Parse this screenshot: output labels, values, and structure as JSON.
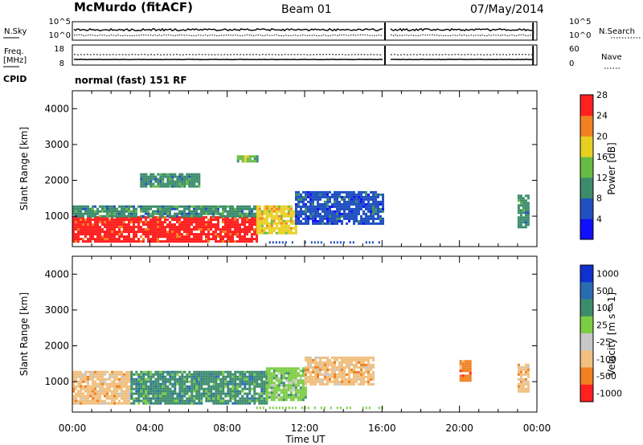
{
  "header": {
    "station": "McMurdo (fitACF)",
    "beam": "Beam 01",
    "date": "07/May/2014"
  },
  "top_panels": {
    "left_label_1": "N.Sky",
    "left_tick_hi_1": "10^5",
    "left_tick_lo_1": "10^0",
    "right_label_1": "N.Search",
    "right_tick_hi_1": "10^5",
    "right_tick_lo_1": "10^0",
    "left_label_2a": "Freq.",
    "left_label_2b": "[MHz]",
    "left_tick_hi_2": "18",
    "left_tick_lo_2": "8",
    "right_label_2": "Nave",
    "right_tick_hi_2": "60",
    "right_tick_lo_2": "0",
    "cpid_label": "CPID",
    "cpid_value": "normal (fast) 151 RF"
  },
  "x_axis": {
    "label": "Time UT",
    "ticks": [
      "00:00",
      "04:00",
      "08:00",
      "12:00",
      "16:00",
      "20:00",
      "00:00"
    ]
  },
  "chart_data": [
    {
      "type": "heatmap",
      "name": "power",
      "ylabel": "Slant Range [km]",
      "yticks": [
        "1000",
        "2000",
        "3000",
        "4000"
      ],
      "ylim": [
        150,
        4500
      ],
      "xlim_hours": [
        0,
        24
      ],
      "colorbar": {
        "label": "Power [dB]",
        "ticks": [
          "4",
          "8",
          "12",
          "16",
          "20",
          "24",
          "28"
        ],
        "colors": [
          "#1010ff",
          "#2050c0",
          "#3c8c6c",
          "#66bb44",
          "#e8d020",
          "#f08020",
          "#ff2020"
        ]
      },
      "echo_regions": [
        {
          "t_start": 0.0,
          "t_end": 9.5,
          "r_low": 300,
          "r_high": 1000,
          "level": "28"
        },
        {
          "t_start": 0.0,
          "t_end": 9.5,
          "r_low": 1000,
          "r_high": 1300,
          "level": "12"
        },
        {
          "t_start": 9.5,
          "t_end": 11.5,
          "r_low": 500,
          "r_high": 1300,
          "level": "20"
        },
        {
          "t_start": 11.5,
          "t_end": 16.0,
          "r_low": 800,
          "r_high": 1700,
          "level": "8"
        },
        {
          "t_start": 3.5,
          "t_end": 6.5,
          "r_low": 1800,
          "r_high": 2200,
          "level": "12"
        },
        {
          "t_start": 8.5,
          "t_end": 9.5,
          "r_low": 2500,
          "r_high": 2700,
          "level": "16"
        },
        {
          "t_start": 23.0,
          "t_end": 23.5,
          "r_low": 700,
          "r_high": 1600,
          "level": "12"
        }
      ]
    },
    {
      "type": "heatmap",
      "name": "velocity",
      "ylabel": "Slant Range [km]",
      "yticks": [
        "1000",
        "2000",
        "3000",
        "4000"
      ],
      "ylim": [
        150,
        4500
      ],
      "xlim_hours": [
        0,
        24
      ],
      "colorbar": {
        "label": "Velocity [m s^-1]",
        "ticks": [
          "1000",
          "500",
          "100",
          "25",
          "-25",
          "-100",
          "-500",
          "-1000"
        ],
        "colors": [
          "#1030d0",
          "#2a6cb0",
          "#3c8c6c",
          "#7ccc44",
          "#c8c8c8",
          "#f0c080",
          "#f08020",
          "#ff2020"
        ]
      },
      "echo_regions": [
        {
          "t_start": 0.0,
          "t_end": 3.0,
          "r_low": 400,
          "r_high": 1300,
          "level": "-100"
        },
        {
          "t_start": 3.0,
          "t_end": 10.0,
          "r_low": 400,
          "r_high": 1300,
          "level": "100"
        },
        {
          "t_start": 10.0,
          "t_end": 12.0,
          "r_low": 500,
          "r_high": 1400,
          "level": "25"
        },
        {
          "t_start": 12.0,
          "t_end": 15.5,
          "r_low": 900,
          "r_high": 1700,
          "level": "-100"
        },
        {
          "t_start": 20.0,
          "t_end": 20.5,
          "r_low": 1000,
          "r_high": 1600,
          "level": "-500"
        },
        {
          "t_start": 23.0,
          "t_end": 23.5,
          "r_low": 700,
          "r_high": 1500,
          "level": "-100"
        }
      ]
    }
  ]
}
